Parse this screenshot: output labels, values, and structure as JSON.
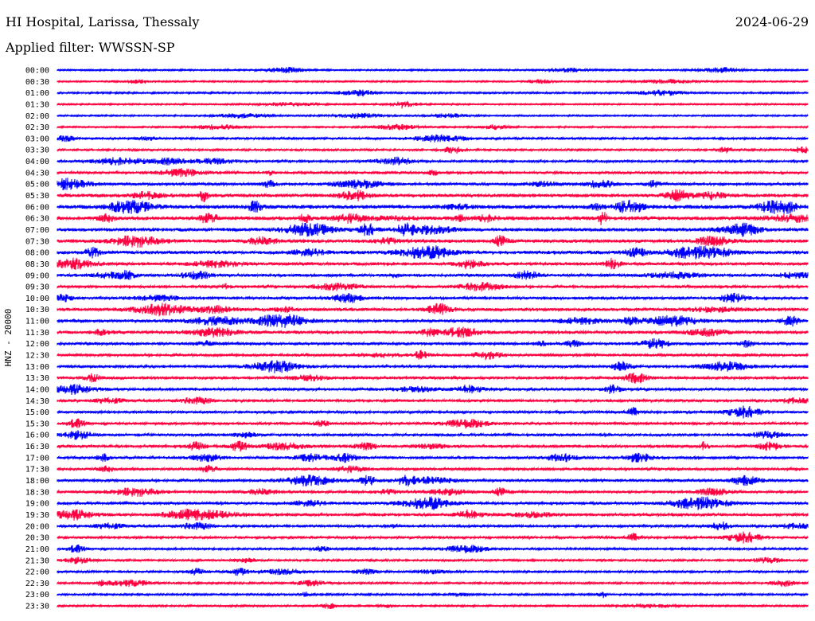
{
  "header": {
    "station": "HI Hospital, Larissa, Thessaly",
    "date": "2024-06-29",
    "filter": "Applied filter: WWSSN-SP"
  },
  "chart_data": {
    "type": "line",
    "title": "HI Hospital, Larissa, Thessaly",
    "subtitle": "Applied filter: WWSSN-SP",
    "ylabel": "HNZ - 20000",
    "row_labels": [
      "00:00",
      "00:30",
      "01:00",
      "01:30",
      "02:00",
      "02:30",
      "03:00",
      "03:30",
      "04:00",
      "04:30",
      "05:00",
      "05:30",
      "06:00",
      "06:30",
      "07:00",
      "07:30",
      "08:00",
      "08:30",
      "09:00",
      "09:30",
      "10:00",
      "10:30",
      "11:00",
      "11:30",
      "12:00",
      "12:30",
      "13:00",
      "13:30",
      "14:00",
      "14:30",
      "15:00",
      "15:30",
      "16:00",
      "16:30",
      "17:00",
      "17:30",
      "18:00",
      "18:30",
      "19:00",
      "19:30",
      "20:00",
      "20:30",
      "21:00",
      "21:30",
      "22:00",
      "22:30",
      "23:00",
      "23:30"
    ],
    "trace_colors": [
      "#0000ff",
      "#ff0040"
    ],
    "row_amplitudes": [
      0.15,
      0.12,
      0.2,
      0.12,
      0.12,
      0.15,
      0.3,
      0.25,
      0.4,
      0.45,
      0.5,
      0.7,
      0.8,
      0.8,
      0.7,
      0.7,
      0.7,
      0.6,
      0.55,
      0.5,
      0.55,
      0.6,
      0.6,
      0.6,
      0.55,
      0.5,
      0.5,
      0.5,
      0.5,
      0.45,
      0.45,
      0.45,
      0.5,
      0.5,
      0.45,
      0.45,
      0.5,
      0.45,
      0.5,
      0.55,
      0.45,
      0.4,
      0.35,
      0.3,
      0.3,
      0.25,
      0.25,
      0.2
    ],
    "grid": false
  }
}
